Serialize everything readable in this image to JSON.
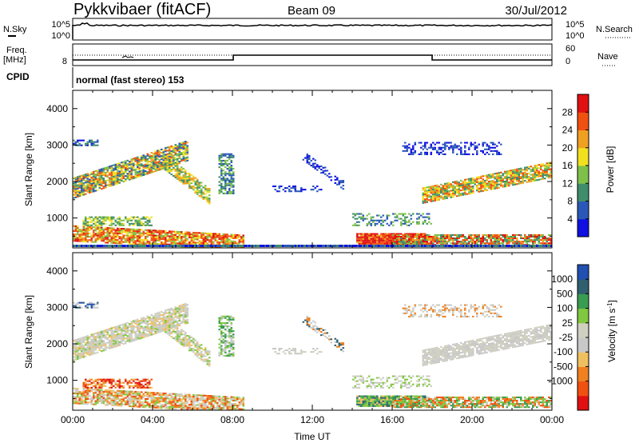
{
  "header": {
    "station": "Pykkvibaer (fitACF)",
    "beam": "Beam 09",
    "date": "30/Jul/2012"
  },
  "noise_panel": {
    "left_label": "N.Sky",
    "left_ticks": [
      "10^5",
      "10^0"
    ],
    "right_ticks": [
      "10^5",
      "10^0"
    ],
    "right_label": "N.Search"
  },
  "freq_panel": {
    "left_label_1": "Freq.",
    "left_label_2": "[MHz]",
    "left_tick": "8",
    "right_ticks": [
      "60",
      "0"
    ],
    "right_label": "Nave"
  },
  "cpid_panel": {
    "label": "CPID",
    "mode": "normal (fast stereo) 153"
  },
  "colors": {
    "power": [
      "#1010e0",
      "#2a58b8",
      "#3f8d6a",
      "#7ec04a",
      "#f0e020",
      "#f0a020",
      "#f05010",
      "#e01010"
    ],
    "velocity": [
      "#e01010",
      "#f05010",
      "#f08020",
      "#f0c060",
      "#c8c8c8",
      "#d0d0c0",
      "#80c840",
      "#3a9c50",
      "#306070",
      "#2050b0"
    ]
  },
  "chart_data": [
    {
      "type": "heatmap",
      "name": "power",
      "ylabel": "Slant Range [km]",
      "ylim": [
        180,
        4500
      ],
      "y_ticks": [
        "4000",
        "3000",
        "2000",
        "1000"
      ],
      "x_range_hours": [
        0,
        24
      ],
      "colorbar_label": "Power [dB]",
      "colorbar_ticks": [
        "28",
        "24",
        "20",
        "16",
        "12",
        "8",
        "4"
      ]
    },
    {
      "type": "heatmap",
      "name": "velocity",
      "ylabel": "Slant Range [km]",
      "ylim": [
        180,
        4500
      ],
      "y_ticks": [
        "4000",
        "3000",
        "2000",
        "1000"
      ],
      "x_range_hours": [
        0,
        24
      ],
      "xlabel": "Time UT",
      "x_ticks": [
        "00:00",
        "04:00",
        "08:00",
        "12:00",
        "16:00",
        "20:00",
        "00:00"
      ],
      "colorbar_label": "Velocity [m s",
      "colorbar_label_sup": "-1",
      "colorbar_ticks": [
        "1000",
        "500",
        "100",
        "25",
        "-25",
        "-100",
        "-500",
        "-1000"
      ]
    }
  ]
}
